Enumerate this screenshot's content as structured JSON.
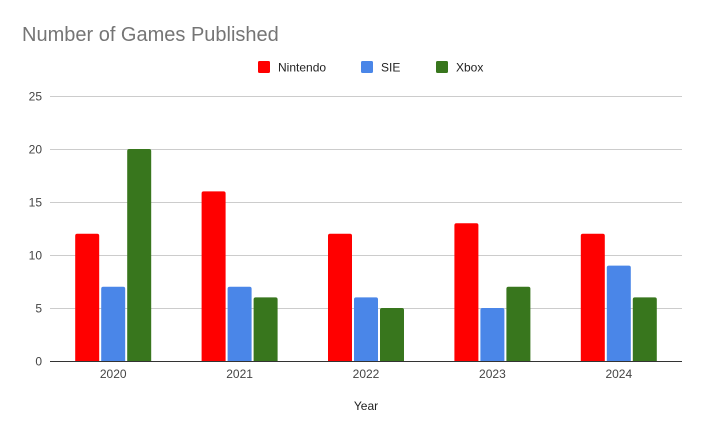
{
  "chart_data": {
    "type": "bar",
    "title": "Number of Games Published",
    "xlabel": "Year",
    "ylabel": "",
    "categories": [
      "2020",
      "2021",
      "2022",
      "2023",
      "2024"
    ],
    "series": [
      {
        "name": "Nintendo",
        "color": "#ff0000",
        "values": [
          12,
          16,
          12,
          13,
          12
        ]
      },
      {
        "name": "SIE",
        "color": "#4a86e8",
        "values": [
          7,
          7,
          6,
          5,
          9
        ]
      },
      {
        "name": "Xbox",
        "color": "#38761d",
        "values": [
          20,
          6,
          5,
          7,
          6
        ]
      }
    ],
    "ylim": [
      0,
      25
    ],
    "yticks": [
      "0",
      "5",
      "10",
      "15",
      "20",
      "25"
    ],
    "grid": true,
    "legend": "top"
  }
}
